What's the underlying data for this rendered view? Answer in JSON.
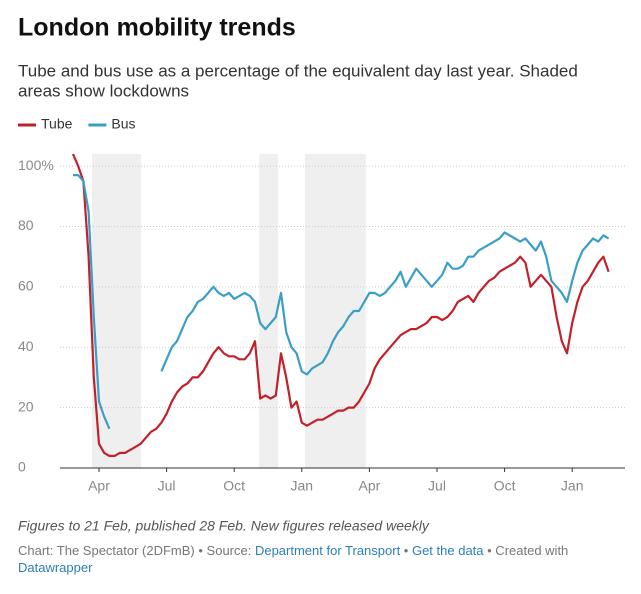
{
  "chart_data": {
    "type": "line",
    "title": "London mobility trends",
    "subtitle": [
      "Tube and bus use as a percentage of the equivalent day last year. Shaded",
      "areas show lockdowns"
    ],
    "note": "Figures to 21 Feb, published 28 Feb. New figures released weekly",
    "credits": [
      {
        "text": "Chart: The Spectator (2DFmB) • Source: ",
        "link": false
      },
      {
        "text": "Department for Transport",
        "link": true
      },
      {
        "text": " • ",
        "link": false
      },
      {
        "text": "Get the data",
        "link": true
      },
      {
        "text": " • Created with ",
        "link": false
      },
      {
        "text": "Datawrapper",
        "link": true
      }
    ],
    "categories": [
      null,
      null,
      null,
      null,
      null,
      "Apr",
      null,
      null,
      null,
      null,
      null,
      null,
      null,
      null,
      null,
      null,
      null,
      null,
      "Jul",
      null,
      null,
      null,
      null,
      null,
      null,
      null,
      null,
      null,
      null,
      null,
      null,
      "Oct",
      null,
      null,
      null,
      null,
      null,
      null,
      null,
      null,
      null,
      null,
      null,
      null,
      "Jan",
      null,
      null,
      null,
      null,
      null,
      null,
      null,
      null,
      null,
      null,
      null,
      null,
      "Apr",
      null,
      null,
      null,
      null,
      null,
      null,
      null,
      null,
      null,
      null,
      null,
      null,
      "Jul",
      null,
      null,
      null,
      null,
      null,
      null,
      null,
      null,
      null,
      null,
      null,
      null,
      "Oct",
      null,
      null,
      null,
      null,
      null,
      null,
      null,
      null,
      null,
      null,
      null,
      null,
      "Jan",
      null,
      null,
      null,
      null,
      null,
      null,
      null
    ],
    "series": [
      {
        "name": "Tube",
        "color": "#c2202b",
        "values": [
          104,
          100,
          95,
          70,
          30,
          8,
          5,
          4,
          4,
          5,
          5,
          6,
          7,
          8,
          10,
          12,
          13,
          15,
          18,
          22,
          25,
          27,
          28,
          30,
          30,
          32,
          35,
          38,
          40,
          38,
          37,
          37,
          36,
          36,
          38,
          42,
          23,
          24,
          23,
          24,
          38,
          30,
          20,
          22,
          15,
          14,
          15,
          16,
          16,
          17,
          18,
          19,
          19,
          20,
          20,
          22,
          25,
          28,
          33,
          36,
          38,
          40,
          42,
          44,
          45,
          46,
          46,
          47,
          48,
          50,
          50,
          49,
          50,
          52,
          55,
          56,
          57,
          55,
          58,
          60,
          62,
          63,
          65,
          66,
          67,
          68,
          70,
          68,
          60,
          62,
          64,
          62,
          60,
          50,
          42,
          38,
          48,
          55,
          60,
          62,
          65,
          68,
          70,
          65
        ]
      },
      {
        "name": "Bus",
        "color": "#3a9fc6",
        "values": [
          97,
          97,
          95,
          85,
          50,
          22,
          17,
          13,
          null,
          null,
          null,
          null,
          null,
          null,
          null,
          null,
          null,
          32,
          36,
          40,
          42,
          46,
          50,
          52,
          55,
          56,
          58,
          60,
          58,
          57,
          58,
          56,
          57,
          58,
          57,
          55,
          48,
          46,
          48,
          50,
          58,
          45,
          40,
          38,
          32,
          31,
          33,
          34,
          35,
          38,
          42,
          45,
          47,
          50,
          52,
          52,
          55,
          58,
          58,
          57,
          58,
          60,
          62,
          65,
          60,
          63,
          66,
          64,
          62,
          60,
          62,
          64,
          68,
          66,
          66,
          67,
          70,
          70,
          72,
          73,
          74,
          75,
          76,
          78,
          77,
          76,
          75,
          76,
          74,
          72,
          75,
          70,
          62,
          60,
          58,
          55,
          62,
          68,
          72,
          74,
          76,
          75,
          77,
          76
        ]
      }
    ],
    "shaded": [
      [
        3.65,
        13.1
      ],
      [
        35.8,
        39.4
      ],
      [
        44.6,
        56.3
      ]
    ],
    "shade_color": "#efefef",
    "ylim": [
      0,
      104
    ],
    "yticks": [
      0,
      20,
      40,
      60,
      80,
      {
        "value": 100,
        "label": "100%"
      }
    ],
    "grid": true
  }
}
